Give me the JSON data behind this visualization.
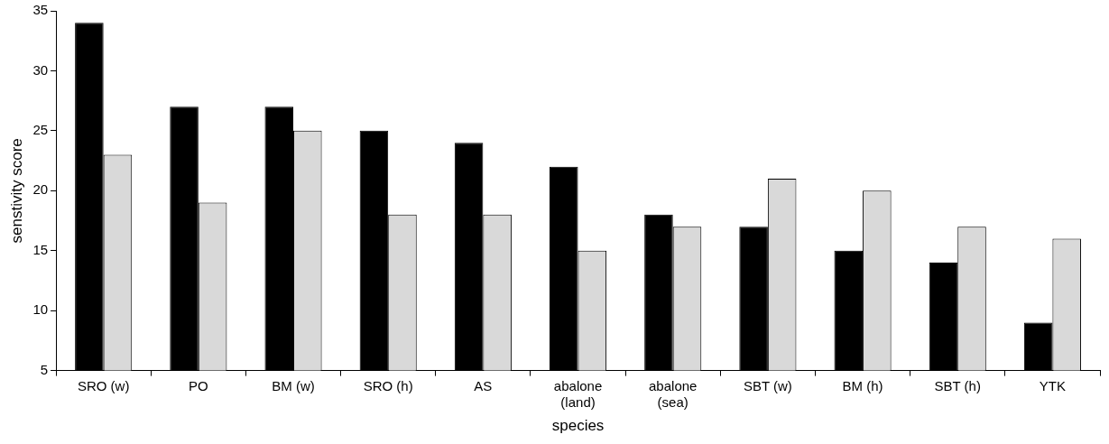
{
  "chart_data": {
    "type": "bar",
    "xlabel": "species",
    "ylabel": "senstivity score",
    "categories": [
      "SRO (w)",
      "PO",
      "BM (w)",
      "SRO (h)",
      "AS",
      "abalone (land)",
      "abalone (sea)",
      "SBT (w)",
      "BM (h)",
      "SBT (h)",
      "YTK"
    ],
    "series": [
      {
        "color": "#000000",
        "values": [
          34,
          27,
          27,
          25,
          24,
          22,
          18,
          17,
          15,
          14,
          9
        ]
      },
      {
        "color": "#d9d9d9",
        "values": [
          23,
          19,
          25,
          18,
          18,
          15,
          17,
          21,
          20,
          17,
          16
        ]
      }
    ],
    "ylim": [
      5,
      35
    ],
    "yticks": [
      5,
      10,
      15,
      20,
      25,
      30,
      35
    ],
    "grid": false,
    "legend": false
  }
}
